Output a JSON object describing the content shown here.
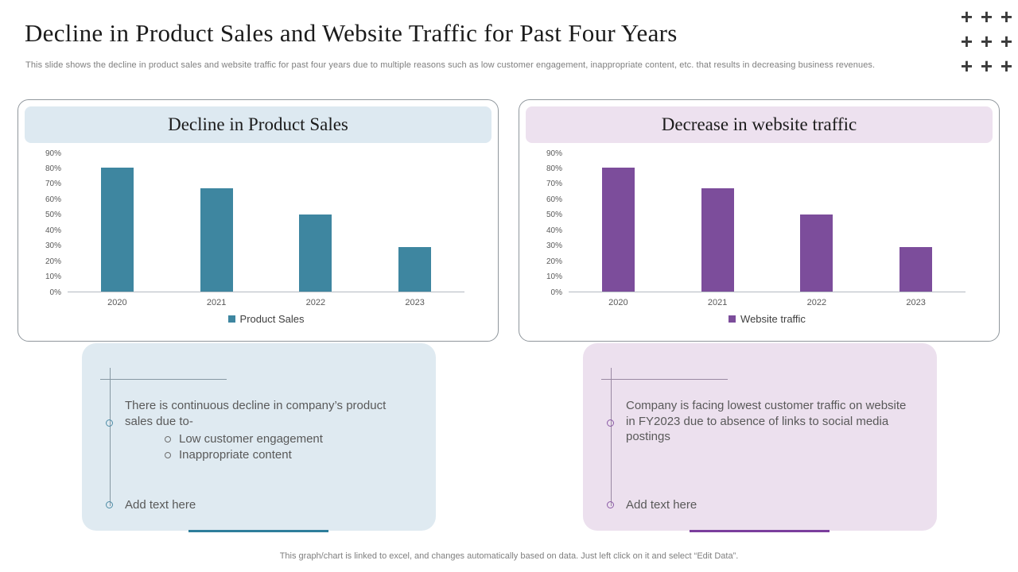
{
  "slide": {
    "title": "Decline in Product Sales and Website Traffic for Past Four Years",
    "subtitle": "This slide shows the decline in product sales and website traffic for past four years due to  multiple reasons such as low customer engagement, inappropriate content, etc. that results in decreasing business revenues.",
    "footer": "This graph/chart is linked to excel,  and changes automatically based on data. Just left click on it and select “Edit Data”."
  },
  "decor": {
    "plus_symbol": "+"
  },
  "colors": {
    "teal_accent": "#3e86a0",
    "purple_accent": "#7c4d9b",
    "teal_underline": "#2e7e9b",
    "purple_underline": "#7b3e9d",
    "light_blue_panel": "#dfeaf1",
    "light_purple_panel": "#ece0ee",
    "header_blue": "#dde9f1",
    "header_purple": "#ede1ef"
  },
  "chart_data": [
    {
      "type": "bar",
      "title": "Decline in Product Sales",
      "categories": [
        "2020",
        "2021",
        "2022",
        "2023"
      ],
      "values": [
        80,
        67,
        50,
        29
      ],
      "unit": "%",
      "ylim": [
        0,
        90
      ],
      "ytick_step": 10,
      "grid": false,
      "legend": "Product Sales",
      "legend_position": "bottom",
      "bar_color": "#3e86a0"
    },
    {
      "type": "bar",
      "title": "Decrease in website traffic",
      "categories": [
        "2020",
        "2021",
        "2022",
        "2023"
      ],
      "values": [
        80,
        67,
        50,
        29
      ],
      "unit": "%",
      "ylim": [
        0,
        90
      ],
      "ytick_step": 10,
      "grid": false,
      "legend": "Website traffic",
      "legend_position": "bottom",
      "bar_color": "#7c4d9b"
    }
  ],
  "notes": [
    {
      "accent": "#4e8ca6",
      "underline": "#2e7e9b",
      "body": "There is continuous  decline in company’s product sales due to-",
      "bullets": [
        "Low customer engagement",
        "Inappropriate content"
      ],
      "add_text": "Add text here"
    },
    {
      "accent": "#8b5ba6",
      "underline": "#7b3e9d",
      "body": "Company is facing lowest customer traffic on website in FY2023 due to absence of links to social media postings",
      "bullets": [],
      "add_text": "Add text here"
    }
  ]
}
